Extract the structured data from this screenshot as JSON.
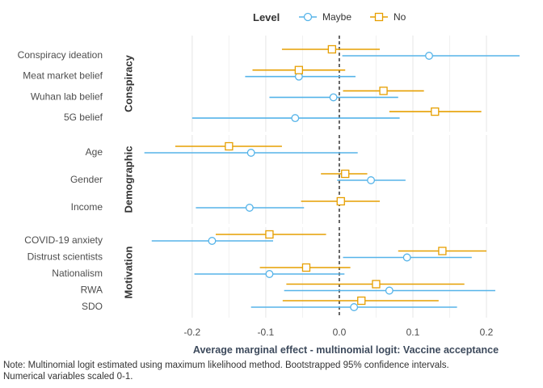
{
  "chart_data": {
    "type": "dot-whisker",
    "legend": {
      "title": "Level",
      "entries": [
        {
          "name": "Maybe",
          "color": "#56B4E9",
          "shape": "circle"
        },
        {
          "name": "No",
          "color": "#E69F00",
          "shape": "square"
        }
      ],
      "placement": "top"
    },
    "xlabel": "Average marginal effect - multinomial logit: Vaccine acceptance",
    "xlim": [
      -0.28,
      0.245
    ],
    "xticks": [
      -0.2,
      -0.1,
      0.0,
      0.1,
      0.2
    ],
    "xtick_labels": [
      "-0.2",
      "-0.1",
      "0.0",
      "0.1",
      "0.2"
    ],
    "reference_line": 0,
    "note_lines": [
      "Note: Multinomial logit estimated using maximum likelihood method.  Bootstrapped 95% confidence intervals.",
      "Numerical variables scaled 0-1."
    ],
    "facets": [
      {
        "name": "Conspiracy",
        "items": [
          {
            "label": "Conspiracy ideation",
            "maybe": {
              "est": 0.122,
              "lo": 0.004,
              "hi": 0.245
            },
            "no": {
              "est": -0.01,
              "lo": -0.078,
              "hi": 0.055
            }
          },
          {
            "label": "Meat market belief",
            "maybe": {
              "est": -0.055,
              "lo": -0.128,
              "hi": 0.022
            },
            "no": {
              "est": -0.055,
              "lo": -0.118,
              "hi": 0.008
            }
          },
          {
            "label": "Wuhan lab belief",
            "maybe": {
              "est": -0.008,
              "lo": -0.095,
              "hi": 0.08
            },
            "no": {
              "est": 0.06,
              "lo": 0.005,
              "hi": 0.115
            }
          },
          {
            "label": "5G belief",
            "maybe": {
              "est": -0.06,
              "lo": -0.2,
              "hi": 0.082
            },
            "no": {
              "est": 0.13,
              "lo": 0.068,
              "hi": 0.193
            }
          }
        ]
      },
      {
        "name": "Demographic",
        "items": [
          {
            "label": "Age",
            "maybe": {
              "est": -0.12,
              "lo": -0.265,
              "hi": 0.025
            },
            "no": {
              "est": -0.15,
              "lo": -0.223,
              "hi": -0.078
            }
          },
          {
            "label": "Gender",
            "maybe": {
              "est": 0.043,
              "lo": -0.003,
              "hi": 0.09
            },
            "no": {
              "est": 0.008,
              "lo": -0.025,
              "hi": 0.038
            }
          },
          {
            "label": "Income",
            "maybe": {
              "est": -0.122,
              "lo": -0.195,
              "hi": -0.048
            },
            "no": {
              "est": 0.002,
              "lo": -0.052,
              "hi": 0.055
            }
          }
        ]
      },
      {
        "name": "Motivation",
        "items": [
          {
            "label": "COVID-19 anxiety",
            "maybe": {
              "est": -0.173,
              "lo": -0.255,
              "hi": -0.09
            },
            "no": {
              "est": -0.095,
              "lo": -0.168,
              "hi": -0.018
            }
          },
          {
            "label": "Distrust scientists",
            "maybe": {
              "est": 0.092,
              "lo": 0.005,
              "hi": 0.18
            },
            "no": {
              "est": 0.14,
              "lo": 0.08,
              "hi": 0.2
            }
          },
          {
            "label": "Nationalism",
            "maybe": {
              "est": -0.095,
              "lo": -0.197,
              "hi": 0.007
            },
            "no": {
              "est": -0.045,
              "lo": -0.108,
              "hi": 0.015
            }
          },
          {
            "label": "RWA",
            "maybe": {
              "est": 0.068,
              "lo": -0.075,
              "hi": 0.212
            },
            "no": {
              "est": 0.05,
              "lo": -0.072,
              "hi": 0.17
            }
          },
          {
            "label": "SDO",
            "maybe": {
              "est": 0.02,
              "lo": -0.12,
              "hi": 0.16
            },
            "no": {
              "est": 0.03,
              "lo": -0.077,
              "hi": 0.135
            }
          }
        ]
      }
    ]
  }
}
